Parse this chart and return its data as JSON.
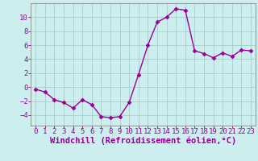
{
  "x": [
    0,
    1,
    2,
    3,
    4,
    5,
    6,
    7,
    8,
    9,
    10,
    11,
    12,
    13,
    14,
    15,
    16,
    17,
    18,
    19,
    20,
    21,
    22,
    23
  ],
  "y": [
    -0.3,
    -0.7,
    -1.8,
    -2.2,
    -3.0,
    -1.8,
    -2.5,
    -4.2,
    -4.4,
    -4.2,
    -2.2,
    1.8,
    6.0,
    9.3,
    10.0,
    11.2,
    11.0,
    5.2,
    4.8,
    4.2,
    4.9,
    4.4,
    5.3,
    5.2
  ],
  "line_color": "#990099",
  "marker": "D",
  "marker_size": 2.5,
  "bg_color": "#cceeee",
  "grid_color": "#aacccc",
  "xlabel": "Windchill (Refroidissement éolien,°C)",
  "xlim": [
    -0.5,
    23.5
  ],
  "ylim": [
    -5.5,
    12.0
  ],
  "yticks": [
    -4,
    -2,
    0,
    2,
    4,
    6,
    8,
    10
  ],
  "xticks": [
    0,
    1,
    2,
    3,
    4,
    5,
    6,
    7,
    8,
    9,
    10,
    11,
    12,
    13,
    14,
    15,
    16,
    17,
    18,
    19,
    20,
    21,
    22,
    23
  ],
  "tick_color": "#990099",
  "tick_fontsize": 6.5,
  "xlabel_fontsize": 7.5,
  "line_width": 1.0,
  "spine_color": "#888888"
}
